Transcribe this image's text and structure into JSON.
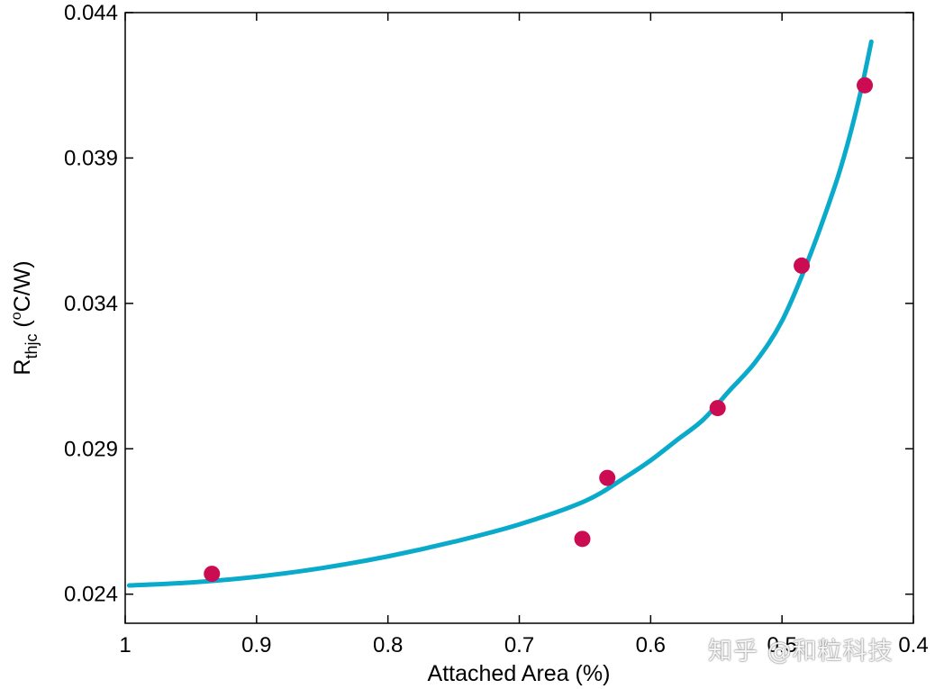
{
  "chart_data": {
    "type": "scatter",
    "title": "",
    "xlabel": "Attached Area (%)",
    "ylabel": {
      "base": "R",
      "subscript": "thjc",
      "unit_open": " (",
      "superscript": "o",
      "unit_close": "C/W)"
    },
    "xlim": [
      1.0,
      0.4
    ],
    "x_reversed": true,
    "ylim": [
      0.023,
      0.044
    ],
    "xticks": [
      1,
      0.9,
      0.8,
      0.7,
      0.6,
      0.5,
      0.4
    ],
    "xtick_labels": [
      "1",
      "0.9",
      "0.8",
      "0.7",
      "0.6",
      "0.5",
      "0.4"
    ],
    "yticks": [
      0.024,
      0.029,
      0.034,
      0.039,
      0.044
    ],
    "ytick_labels": [
      "0.024",
      "0.029",
      "0.034",
      "0.039",
      "0.044"
    ],
    "grid": false,
    "series": [
      {
        "kind": "points",
        "color": "#cc0c52",
        "x": [
          0.934,
          0.652,
          0.633,
          0.549,
          0.485,
          0.437
        ],
        "y": [
          0.0247,
          0.0259,
          0.028,
          0.0304,
          0.0353,
          0.0415
        ]
      },
      {
        "kind": "fit-curve",
        "color": "#0aaacb",
        "x": [
          0.997,
          0.95,
          0.9,
          0.85,
          0.8,
          0.75,
          0.7,
          0.65,
          0.62,
          0.6,
          0.58,
          0.56,
          0.54,
          0.52,
          0.5,
          0.48,
          0.46,
          0.45,
          0.44,
          0.432
        ],
        "y": [
          0.0243,
          0.0244,
          0.0246,
          0.0249,
          0.0253,
          0.0258,
          0.0264,
          0.0272,
          0.028,
          0.0286,
          0.0293,
          0.03,
          0.031,
          0.032,
          0.0334,
          0.0355,
          0.038,
          0.0395,
          0.0413,
          0.043
        ]
      }
    ]
  },
  "watermark": "知乎 @和粒科技"
}
